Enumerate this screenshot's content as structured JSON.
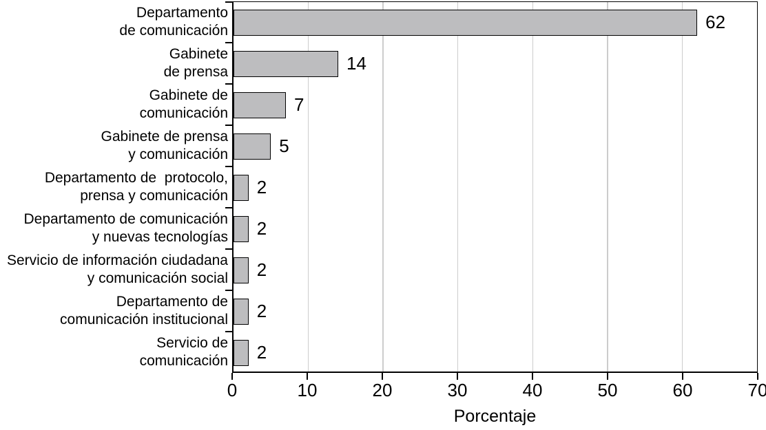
{
  "chart_data": {
    "type": "bar",
    "orientation": "horizontal",
    "title": "",
    "xlabel": "Porcentaje",
    "ylabel": "",
    "xlim": [
      0,
      70
    ],
    "xticks": [
      0,
      10,
      20,
      30,
      40,
      50,
      60,
      70
    ],
    "grid": "vertical-light-gray",
    "legend": "none",
    "categories": [
      "Departamento\nde comunicación",
      "Gabinete\nde prensa",
      "Gabinete de\ncomunicación",
      "Gabinete de prensa\ny comunicación",
      "Departamento de  protocolo,\nprensa y comunicación",
      "Departamento de comunicación\ny nuevas tecnologías",
      "Servicio de información ciudadana\ny comunicación social",
      "Departamento de\ncomunicación institucional",
      "Servicio de\ncomunicación"
    ],
    "values": [
      62,
      14,
      7,
      5,
      2,
      2,
      2,
      2,
      2
    ],
    "value_labels": [
      "62",
      "14",
      "7",
      "5",
      "2",
      "2",
      "2",
      "2",
      "2"
    ],
    "colors": {
      "bar_fill": "#bdbdbf",
      "bar_border": "#000000",
      "gridline": "#cccccc",
      "axis_frame": "#000000",
      "text": "#000000",
      "background": "#ffffff"
    }
  }
}
